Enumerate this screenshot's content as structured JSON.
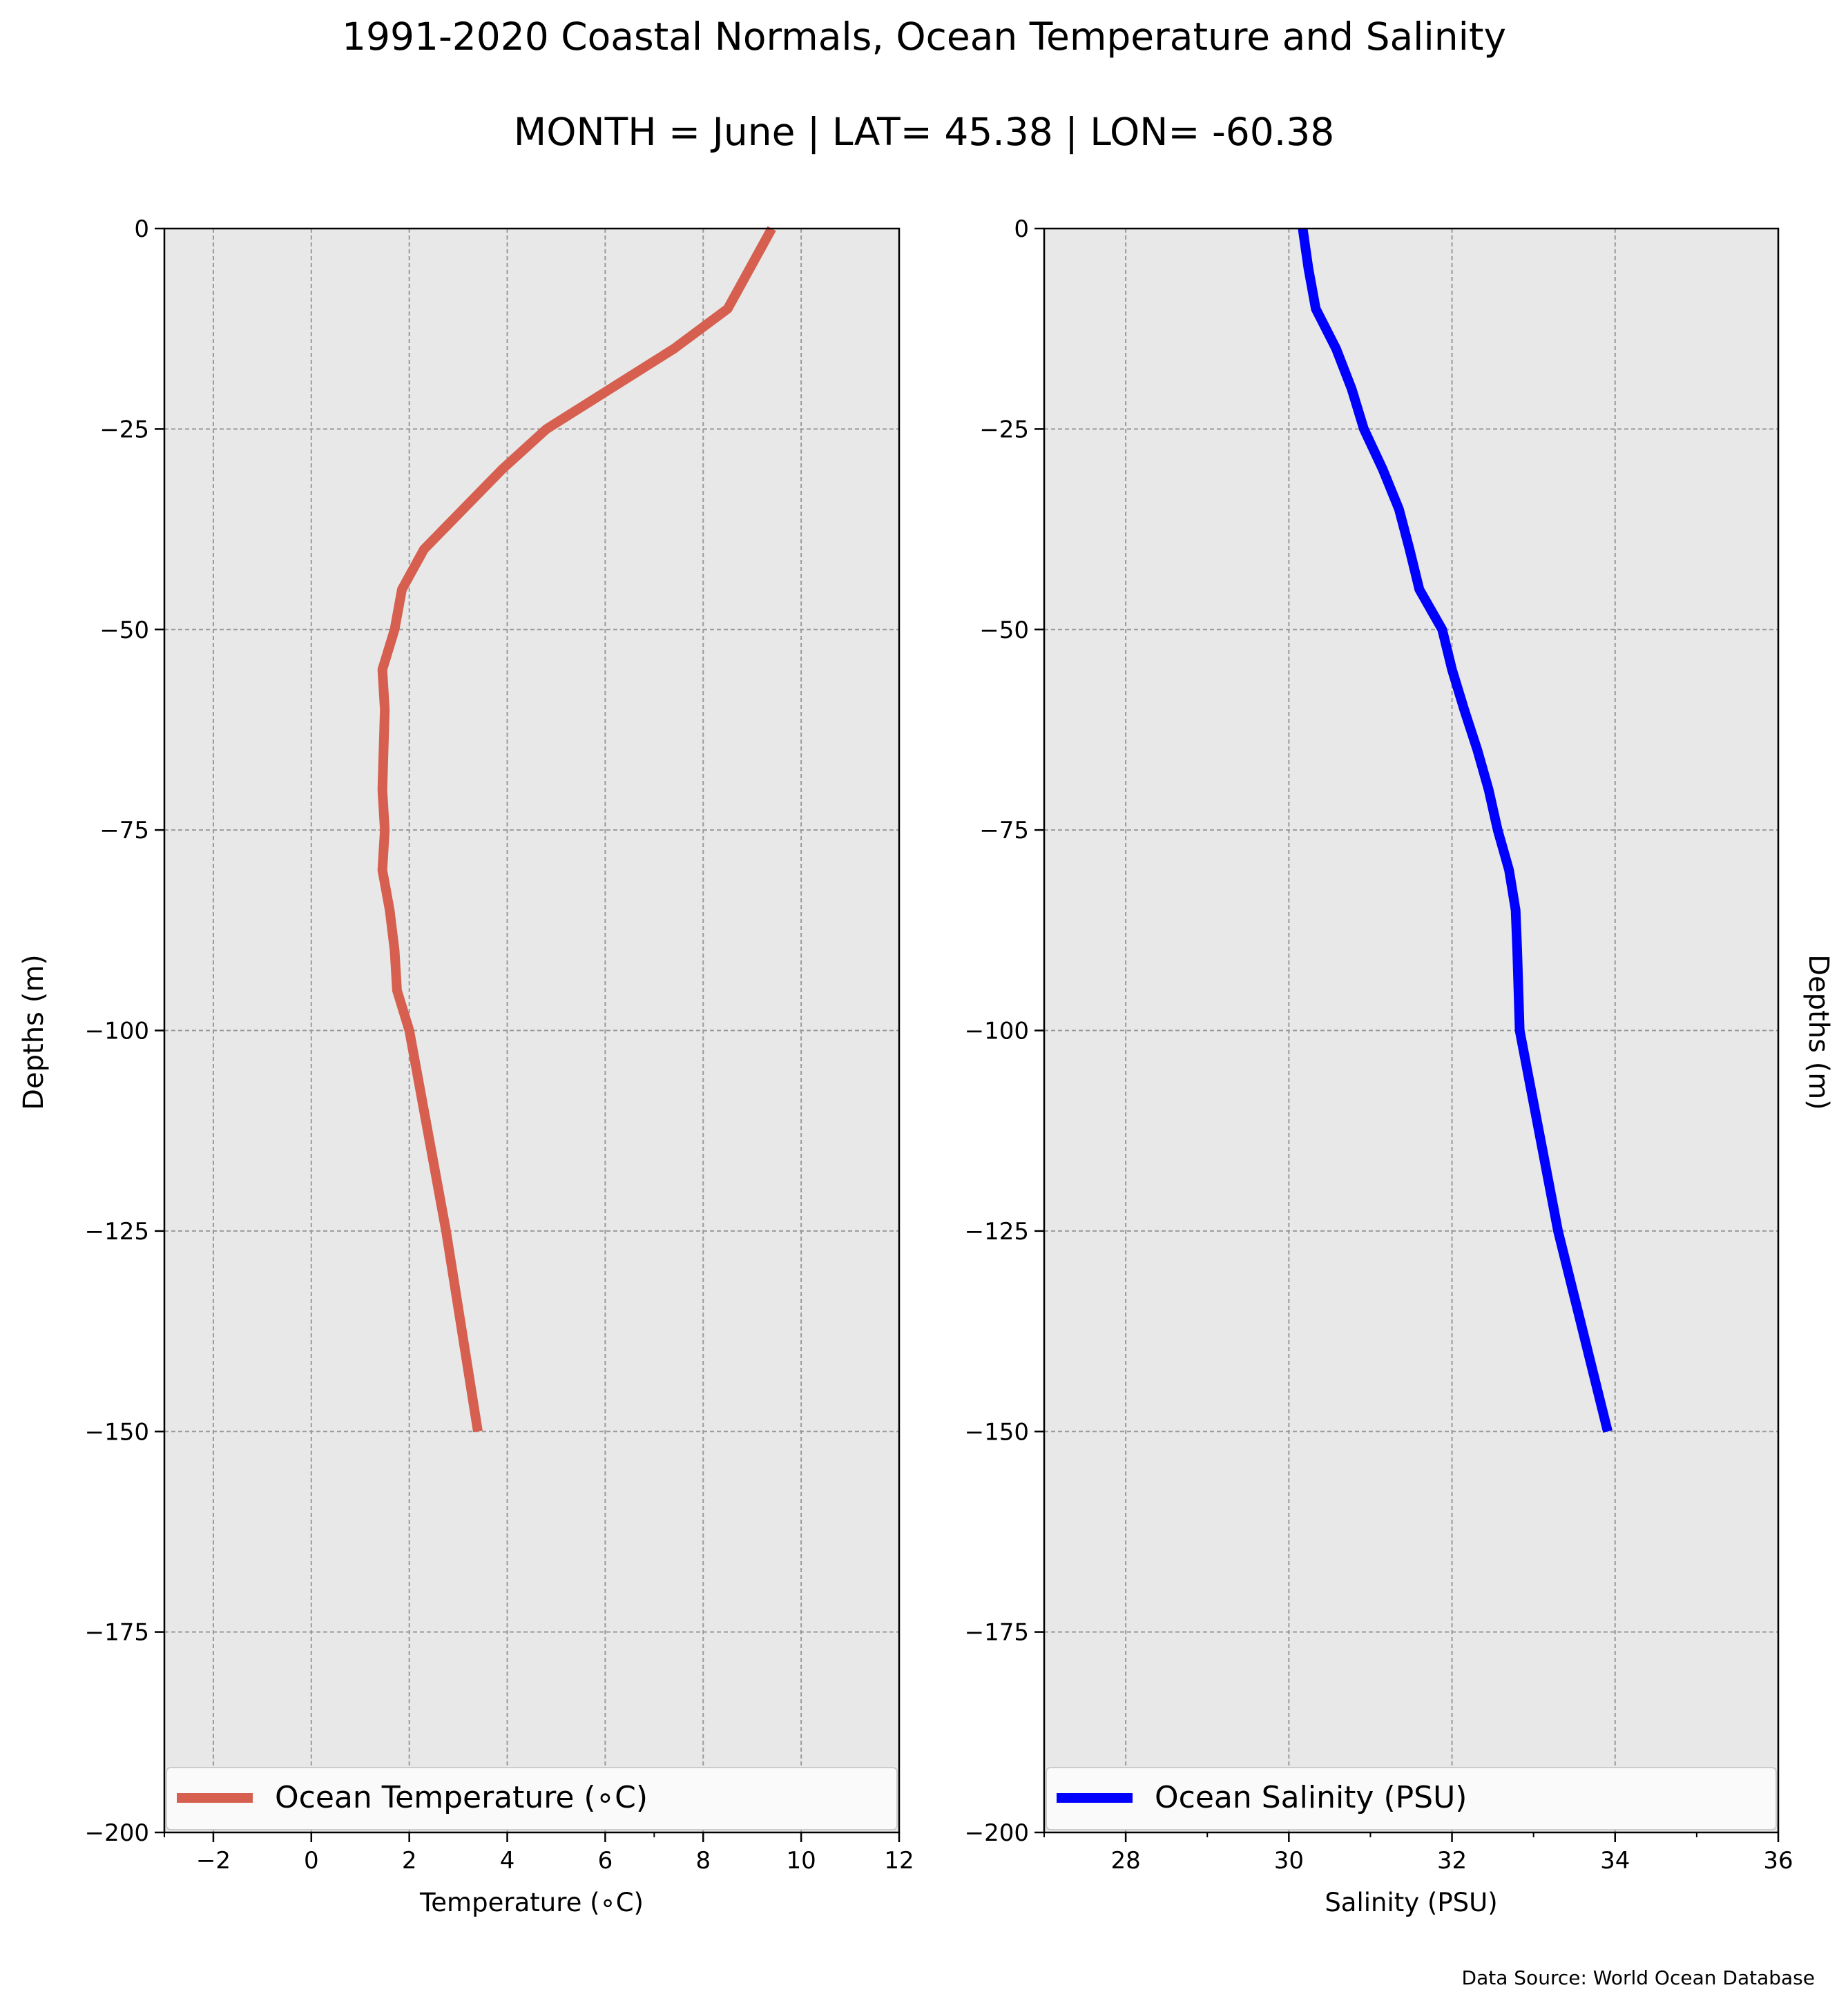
{
  "title": "1991-2020 Coastal Normals, Ocean Temperature and Salinity",
  "subtitle": "MONTH = June | LAT= 45.38 | LON= -60.38",
  "source_note": "Data Source: World Ocean Database",
  "chart_data": [
    {
      "type": "line",
      "title": "",
      "xlabel": "Temperature (∘C)",
      "ylabel": "Depths (m)",
      "xlim": [
        -3,
        12
      ],
      "ylim": [
        -200,
        0
      ],
      "xticks": [
        -2,
        0,
        2,
        4,
        6,
        8,
        10,
        12
      ],
      "yticks": [
        0,
        -25,
        -50,
        -75,
        -100,
        -125,
        -150,
        -175,
        -200
      ],
      "grid": true,
      "legend_position": "bottom",
      "colors": {
        "line": "#d65f4f",
        "background": "#e8e8e8"
      },
      "series": [
        {
          "name": "Ocean Temperature (∘C)",
          "x": [
            9.4,
            8.5,
            7.4,
            6.1,
            4.8,
            3.9,
            3.1,
            2.3,
            1.85,
            1.7,
            1.45,
            1.5,
            1.45,
            1.5,
            1.45,
            1.6,
            1.7,
            1.75,
            2.0,
            2.75,
            3.4
          ],
          "y": [
            0,
            -10,
            -15,
            -20,
            -25,
            -30,
            -35,
            -40,
            -45,
            -50,
            -55,
            -60,
            -70,
            -75,
            -80,
            -85,
            -90,
            -95,
            -100,
            -125,
            -150
          ]
        }
      ]
    },
    {
      "type": "line",
      "title": "",
      "xlabel": "Salinity (PSU)",
      "ylabel": "Depths (m)",
      "xlim": [
        27,
        36
      ],
      "ylim": [
        -200,
        0
      ],
      "xticks": [
        28,
        30,
        32,
        34,
        36
      ],
      "yticks": [
        0,
        -25,
        -50,
        -75,
        -100,
        -125,
        -150,
        -175,
        -200
      ],
      "grid": true,
      "legend_position": "bottom",
      "colors": {
        "line": "#0000ff",
        "background": "#e8e8e8"
      },
      "series": [
        {
          "name": "Ocean Salinity (PSU)",
          "x": [
            30.17,
            30.24,
            30.33,
            30.58,
            30.77,
            30.92,
            31.15,
            31.35,
            31.48,
            31.6,
            31.88,
            32.0,
            32.15,
            32.31,
            32.45,
            32.56,
            32.7,
            32.78,
            32.8,
            32.83,
            33.3,
            33.91
          ],
          "y": [
            0,
            -5,
            -10,
            -15,
            -20,
            -25,
            -30,
            -35,
            -40,
            -45,
            -50,
            -55,
            -60,
            -65,
            -70,
            -75,
            -80,
            -85,
            -90,
            -100,
            -125,
            -150
          ]
        }
      ]
    }
  ]
}
